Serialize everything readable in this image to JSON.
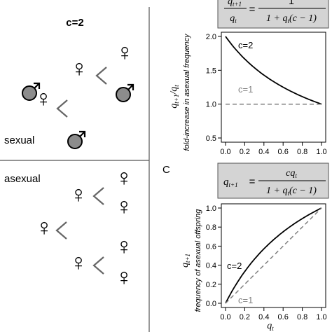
{
  "left_panel": {
    "title": "c=2",
    "sexual_label": "sexual",
    "asexual_label": "asexual"
  },
  "symbols": {
    "female": "♀",
    "male": "♂"
  },
  "colors": {
    "male_fill": "#8c8c8c",
    "curve": "#000000",
    "dashed": "#808080",
    "formula_box": "#d4d4d4"
  },
  "panel_b": {
    "formula_lhs_num": "q",
    "formula_lhs_num_sub": "t+1",
    "formula_lhs_den": "q",
    "formula_lhs_den_sub": "t",
    "formula_eq": "=",
    "formula_rhs_num": "1",
    "formula_rhs_den_prefix": "1 + q",
    "formula_rhs_den_sub": "t",
    "formula_rhs_den_suffix": "(c − 1)",
    "ylabel_main": "q",
    "ylabel_main_sub1": "t+1",
    "ylabel_main_mid": "/q",
    "ylabel_main_sub2": "t",
    "ylabel_secondary": "fold-increase in asexual frequency",
    "curve_label_c2": "c=2",
    "curve_label_c1": "c=1"
  },
  "panel_c": {
    "letter": "C",
    "formula_lhs": "q",
    "formula_lhs_sub": "t+1",
    "formula_eq": "=",
    "formula_rhs_num": "cq",
    "formula_rhs_num_sub": "t",
    "formula_rhs_den_prefix": "1 + q",
    "formula_rhs_den_sub": "t",
    "formula_rhs_den_suffix": "(c − 1)",
    "ylabel_main": "q",
    "ylabel_main_sub": "t+1",
    "ylabel_secondary": "frequency of asexual offspring",
    "xlabel": "q",
    "xlabel_sub": "t",
    "curve_label_c2": "c=2",
    "curve_label_c1": "c=1"
  },
  "chart_data": [
    {
      "type": "line",
      "xlabel": "",
      "ylabel": "q_{t+1}/q_t — fold-increase in asexual frequency",
      "xlim": [
        0,
        1
      ],
      "ylim": [
        0.5,
        2.0
      ],
      "x_ticks": [
        "0.0",
        "0.2",
        "0.4",
        "0.6",
        "0.8",
        "1.0"
      ],
      "y_ticks": [
        "0.5",
        "1.0",
        "1.5",
        "2.0"
      ],
      "series": [
        {
          "name": "c=2",
          "style": "solid",
          "x": [
            0,
            0.1,
            0.2,
            0.3,
            0.4,
            0.5,
            0.6,
            0.7,
            0.8,
            0.9,
            1.0
          ],
          "values": [
            2.0,
            1.818,
            1.667,
            1.538,
            1.429,
            1.333,
            1.25,
            1.176,
            1.111,
            1.053,
            1.0
          ]
        },
        {
          "name": "c=1",
          "style": "dashed",
          "x": [
            0,
            1.0
          ],
          "values": [
            1.0,
            1.0
          ]
        }
      ]
    },
    {
      "type": "line",
      "xlabel": "q_t",
      "ylabel": "q_{t+1} — frequency of asexual offspring",
      "xlim": [
        0,
        1
      ],
      "ylim": [
        0,
        1
      ],
      "x_ticks": [
        "0.0",
        "0.2",
        "0.4",
        "0.6",
        "0.8",
        "1.0"
      ],
      "y_ticks": [
        "0.0",
        "0.2",
        "0.4",
        "0.6",
        "0.8",
        "1.0"
      ],
      "series": [
        {
          "name": "c=2",
          "style": "solid",
          "x": [
            0,
            0.1,
            0.2,
            0.3,
            0.4,
            0.5,
            0.6,
            0.7,
            0.8,
            0.9,
            1.0
          ],
          "values": [
            0,
            0.182,
            0.333,
            0.462,
            0.571,
            0.667,
            0.75,
            0.824,
            0.889,
            0.947,
            1.0
          ]
        },
        {
          "name": "c=1",
          "style": "dashed",
          "x": [
            0,
            1.0
          ],
          "values": [
            0,
            1.0
          ]
        }
      ]
    }
  ]
}
